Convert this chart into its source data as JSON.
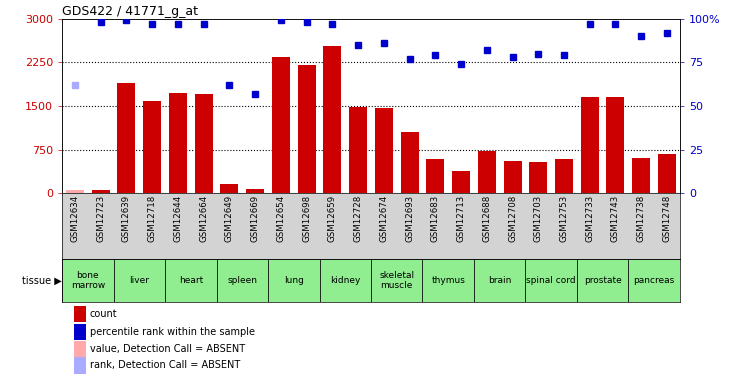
{
  "title": "GDS422 / 41771_g_at",
  "samples": [
    "GSM12634",
    "GSM12723",
    "GSM12639",
    "GSM12718",
    "GSM12644",
    "GSM12664",
    "GSM12649",
    "GSM12669",
    "GSM12654",
    "GSM12698",
    "GSM12659",
    "GSM12728",
    "GSM12674",
    "GSM12693",
    "GSM12683",
    "GSM12713",
    "GSM12688",
    "GSM12708",
    "GSM12703",
    "GSM12753",
    "GSM12733",
    "GSM12743",
    "GSM12738",
    "GSM12748"
  ],
  "counts": [
    50,
    60,
    1900,
    1580,
    1720,
    1700,
    150,
    70,
    2350,
    2200,
    2530,
    1480,
    1460,
    1060,
    580,
    380,
    720,
    560,
    540,
    580,
    1650,
    1660,
    600,
    670
  ],
  "percentile": [
    62,
    98,
    99,
    97,
    97,
    97,
    62,
    57,
    99,
    98,
    97,
    85,
    86,
    77,
    79,
    74,
    82,
    78,
    80,
    79,
    97,
    97,
    90,
    92
  ],
  "absent_count": [
    true,
    false,
    false,
    false,
    false,
    false,
    false,
    false,
    false,
    false,
    false,
    false,
    false,
    false,
    false,
    false,
    false,
    false,
    false,
    false,
    false,
    false,
    false,
    false
  ],
  "absent_rank": [
    true,
    false,
    false,
    false,
    false,
    false,
    false,
    false,
    false,
    false,
    false,
    false,
    false,
    false,
    false,
    false,
    false,
    false,
    false,
    false,
    false,
    false,
    false,
    false
  ],
  "tissues": [
    {
      "label": "bone\nmarrow",
      "start": 0,
      "end": 2,
      "color": "#90EE90"
    },
    {
      "label": "liver",
      "start": 2,
      "end": 4,
      "color": "#90EE90"
    },
    {
      "label": "heart",
      "start": 4,
      "end": 6,
      "color": "#90EE90"
    },
    {
      "label": "spleen",
      "start": 6,
      "end": 8,
      "color": "#90EE90"
    },
    {
      "label": "lung",
      "start": 8,
      "end": 10,
      "color": "#90EE90"
    },
    {
      "label": "kidney",
      "start": 10,
      "end": 12,
      "color": "#90EE90"
    },
    {
      "label": "skeletal\nmuscle",
      "start": 12,
      "end": 14,
      "color": "#90EE90"
    },
    {
      "label": "thymus",
      "start": 14,
      "end": 16,
      "color": "#90EE90"
    },
    {
      "label": "brain",
      "start": 16,
      "end": 18,
      "color": "#90EE90"
    },
    {
      "label": "spinal cord",
      "start": 18,
      "end": 20,
      "color": "#90EE90"
    },
    {
      "label": "prostate",
      "start": 20,
      "end": 22,
      "color": "#90EE90"
    },
    {
      "label": "pancreas",
      "start": 22,
      "end": 24,
      "color": "#90EE90"
    }
  ],
  "bar_color": "#CC0000",
  "bar_absent_color": "#FFAAAA",
  "dot_color": "#0000CC",
  "dot_absent_color": "#AAAAFF",
  "ylim_left": [
    0,
    3000
  ],
  "ylim_right": [
    0,
    100
  ],
  "yticks_left": [
    0,
    750,
    1500,
    2250,
    3000
  ],
  "yticks_right": [
    0,
    25,
    50,
    75,
    100
  ],
  "legend_items": [
    {
      "label": "count",
      "color": "#CC0000"
    },
    {
      "label": "percentile rank within the sample",
      "color": "#0000CC"
    },
    {
      "label": "value, Detection Call = ABSENT",
      "color": "#FFAAAA"
    },
    {
      "label": "rank, Detection Call = ABSENT",
      "color": "#AAAAFF"
    }
  ]
}
